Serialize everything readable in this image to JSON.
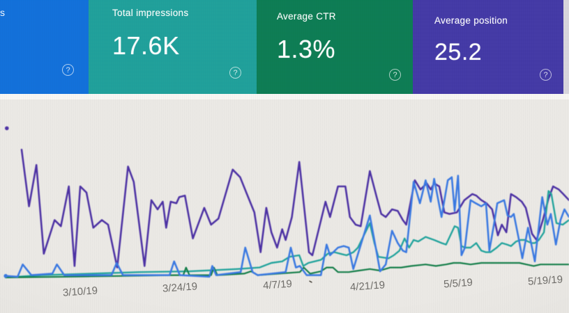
{
  "cards": {
    "clicks": {
      "visible_label_fragment": "s",
      "help_glyph": "?",
      "color": "#1170da"
    },
    "impressions": {
      "label": "Total impressions",
      "value": "17.6K",
      "help_glyph": "?",
      "color": "#1fa09a"
    },
    "ctr": {
      "label": "Average CTR",
      "value": "1.3%",
      "help_glyph": "?",
      "color": "#0c7c53"
    },
    "position": {
      "label": "Average position",
      "value": "25.2",
      "help_glyph": "?",
      "color": "#4339a6"
    }
  },
  "chart_data": {
    "type": "line",
    "title": "",
    "xlabel": "",
    "ylabel": "",
    "grid": false,
    "legend": "none",
    "x_tick_labels": [
      "3/10/19",
      "3/24/19",
      "4/7/19",
      "4/21/19",
      "5/5/19",
      "5/19/19"
    ],
    "x_tick_positions_pct": [
      14.1,
      31.6,
      48.8,
      64.6,
      80.5,
      95.8
    ],
    "y_axis_note": "no y-axis scale visible in image; point values are relative height, 0-100",
    "ylim": [
      0,
      100
    ],
    "series": [
      {
        "name": "purple-series",
        "color": "#4c31a4",
        "stroke_width": 2.6,
        "points": [
          [
            3.8,
            84
          ],
          [
            5.1,
            47
          ],
          [
            6.4,
            74
          ],
          [
            7.7,
            16
          ],
          [
            9.6,
            38
          ],
          [
            10.7,
            34
          ],
          [
            12.1,
            60
          ],
          [
            13.1,
            8
          ],
          [
            14.1,
            60
          ],
          [
            15.2,
            56
          ],
          [
            16.4,
            33
          ],
          [
            17.9,
            38
          ],
          [
            19,
            35
          ],
          [
            20.6,
            7
          ],
          [
            22.5,
            73
          ],
          [
            23.5,
            63
          ],
          [
            25.4,
            8
          ],
          [
            26.6,
            51
          ],
          [
            27.7,
            45
          ],
          [
            28.6,
            50
          ],
          [
            29.2,
            33
          ],
          [
            30,
            50
          ],
          [
            31,
            49
          ],
          [
            31.5,
            53
          ],
          [
            32.5,
            54
          ],
          [
            33.9,
            26
          ],
          [
            35.9,
            46
          ],
          [
            37.1,
            35
          ],
          [
            38.4,
            39
          ],
          [
            40.9,
            71
          ],
          [
            42.2,
            66
          ],
          [
            43.4,
            55
          ],
          [
            44.7,
            43
          ],
          [
            45.8,
            17
          ],
          [
            46.8,
            46
          ],
          [
            47.7,
            30
          ],
          [
            48.7,
            20
          ],
          [
            49.6,
            32
          ],
          [
            50.2,
            25
          ],
          [
            51.3,
            40
          ],
          [
            52.6,
            76
          ],
          [
            54.3,
            17
          ],
          [
            54.9,
            15
          ],
          [
            57.2,
            50
          ],
          [
            58,
            40
          ],
          [
            59.4,
            60
          ],
          [
            60.7,
            60
          ],
          [
            61.5,
            40
          ],
          [
            62.5,
            35
          ],
          [
            63.4,
            34
          ],
          [
            65,
            70
          ],
          [
            66.2,
            53
          ],
          [
            67,
            42
          ],
          [
            67.8,
            40
          ],
          [
            68.9,
            45
          ],
          [
            69.9,
            44
          ],
          [
            70.8,
            38
          ],
          [
            71.4,
            35
          ],
          [
            72.9,
            64
          ],
          [
            73.9,
            58
          ],
          [
            75,
            62
          ],
          [
            75.7,
            58
          ],
          [
            76.3,
            62
          ],
          [
            77.2,
            60
          ],
          [
            78.1,
            43
          ],
          [
            79,
            42
          ],
          [
            80.3,
            43
          ],
          [
            81.6,
            51
          ],
          [
            83,
            55
          ],
          [
            83.7,
            54
          ],
          [
            84.6,
            51
          ],
          [
            85.5,
            49
          ],
          [
            86.5,
            45
          ],
          [
            87.5,
            28
          ],
          [
            88.2,
            35
          ],
          [
            89,
            30
          ],
          [
            89.8,
            55
          ],
          [
            90.7,
            53
          ],
          [
            91.7,
            50
          ],
          [
            92.4,
            46
          ],
          [
            93.5,
            29
          ],
          [
            94.3,
            25
          ],
          [
            95.4,
            38
          ],
          [
            96.4,
            52
          ],
          [
            97.2,
            60
          ],
          [
            98.2,
            58
          ],
          [
            99,
            55
          ],
          [
            100,
            51
          ]
        ]
      },
      {
        "name": "teal-series",
        "color": "#20a39c",
        "stroke_width": 2.4,
        "points": [
          [
            1,
            0.5
          ],
          [
            7.4,
            2
          ],
          [
            15.9,
            3
          ],
          [
            24.5,
            4
          ],
          [
            33.3,
            4.5
          ],
          [
            41.7,
            6
          ],
          [
            45.6,
            7
          ],
          [
            47.7,
            10
          ],
          [
            49.6,
            11
          ],
          [
            50.9,
            14
          ],
          [
            52.6,
            15
          ],
          [
            53.3,
            8
          ],
          [
            54.2,
            10
          ],
          [
            56.4,
            12
          ],
          [
            57.6,
            16
          ],
          [
            58.8,
            17
          ],
          [
            59.8,
            16
          ],
          [
            60.9,
            15
          ],
          [
            62.1,
            17
          ],
          [
            62.9,
            20
          ],
          [
            65,
            36
          ],
          [
            65.8,
            23
          ],
          [
            66.5,
            14
          ],
          [
            68.3,
            13
          ],
          [
            69.2,
            15
          ],
          [
            70.2,
            18
          ],
          [
            71.1,
            26
          ],
          [
            71.9,
            20
          ],
          [
            72.7,
            25
          ],
          [
            73.5,
            24
          ],
          [
            74.8,
            27
          ],
          [
            76.3,
            25
          ],
          [
            77.6,
            23
          ],
          [
            78.4,
            22
          ],
          [
            79.9,
            34
          ],
          [
            80.5,
            33
          ],
          [
            81.1,
            21
          ],
          [
            81.7,
            20
          ],
          [
            82.7,
            20
          ],
          [
            83.7,
            23
          ],
          [
            84.6,
            18
          ],
          [
            85.4,
            17
          ],
          [
            86.2,
            17
          ],
          [
            87.3,
            20
          ],
          [
            88.2,
            23
          ],
          [
            89.1,
            22
          ],
          [
            89.8,
            21
          ],
          [
            90.7,
            24
          ],
          [
            91.5,
            25
          ],
          [
            92.2,
            25
          ],
          [
            92.8,
            24
          ],
          [
            93.4,
            23
          ],
          [
            94,
            23
          ],
          [
            94.7,
            25
          ],
          [
            95.6,
            30
          ],
          [
            96.4,
            57
          ],
          [
            96.9,
            55
          ],
          [
            97.8,
            36
          ],
          [
            98.9,
            35
          ],
          [
            100,
            38
          ]
        ]
      },
      {
        "name": "green-series",
        "color": "#107c46",
        "stroke_width": 2.2,
        "points": [
          [
            1,
            0.5
          ],
          [
            12.3,
            1
          ],
          [
            22.1,
            1.5
          ],
          [
            30.6,
            2
          ],
          [
            32.2,
            2
          ],
          [
            32.7,
            7
          ],
          [
            33.3,
            2
          ],
          [
            37.1,
            2
          ],
          [
            37.6,
            7
          ],
          [
            38.2,
            2
          ],
          [
            42.9,
            3
          ],
          [
            44.1,
            4.5
          ],
          [
            45.3,
            2
          ],
          [
            52.7,
            4
          ],
          [
            53.4,
            7
          ],
          [
            54.5,
            3
          ],
          [
            56.4,
            4.5
          ],
          [
            57.4,
            7
          ],
          [
            58.5,
            7
          ],
          [
            59.4,
            4
          ],
          [
            61.3,
            4
          ],
          [
            63.1,
            5
          ],
          [
            65,
            6
          ],
          [
            66.8,
            5
          ],
          [
            68.6,
            7
          ],
          [
            70.5,
            7
          ],
          [
            72.3,
            8
          ],
          [
            74.8,
            9
          ],
          [
            76.6,
            8
          ],
          [
            78.4,
            9
          ],
          [
            79.7,
            10
          ],
          [
            80.9,
            10
          ],
          [
            82.7,
            9
          ],
          [
            84.6,
            10
          ],
          [
            85.8,
            10
          ],
          [
            87.6,
            10
          ],
          [
            89.5,
            10
          ],
          [
            91.3,
            10
          ],
          [
            92.5,
            9
          ],
          [
            93.8,
            8
          ],
          [
            95,
            9
          ],
          [
            96.2,
            9
          ],
          [
            97.4,
            9
          ],
          [
            98.7,
            9
          ],
          [
            100,
            9
          ]
        ]
      },
      {
        "name": "blue-series",
        "color": "#3a79e2",
        "stroke_width": 2.6,
        "points": [
          [
            1,
            1.5
          ],
          [
            3.1,
            1
          ],
          [
            4,
            9
          ],
          [
            5.5,
            2
          ],
          [
            9.2,
            3
          ],
          [
            10,
            9
          ],
          [
            11.3,
            2
          ],
          [
            19.6,
            2
          ],
          [
            20.5,
            10
          ],
          [
            21.6,
            2
          ],
          [
            29.8,
            2
          ],
          [
            30.6,
            11
          ],
          [
            31.6,
            2
          ],
          [
            36.8,
            1
          ],
          [
            37.3,
            8
          ],
          [
            38,
            2
          ],
          [
            42.3,
            4
          ],
          [
            43.1,
            20
          ],
          [
            44.4,
            4
          ],
          [
            45.3,
            2
          ],
          [
            50.2,
            4
          ],
          [
            51.1,
            20
          ],
          [
            52,
            7
          ],
          [
            52.7,
            8
          ],
          [
            53.9,
            2
          ],
          [
            56.4,
            2
          ],
          [
            57.4,
            22
          ],
          [
            58,
            15
          ],
          [
            59.4,
            20
          ],
          [
            60.4,
            21
          ],
          [
            61.3,
            20
          ],
          [
            62.1,
            6
          ],
          [
            65,
            41
          ],
          [
            66.8,
            4.5
          ],
          [
            67.8,
            9
          ],
          [
            68.9,
            31
          ],
          [
            69.9,
            23
          ],
          [
            70.8,
            18
          ],
          [
            71.4,
            17
          ],
          [
            72.7,
            63
          ],
          [
            73.8,
            49
          ],
          [
            74.8,
            64
          ],
          [
            75.7,
            50
          ],
          [
            76.3,
            65
          ],
          [
            77.6,
            40
          ],
          [
            78.7,
            64
          ],
          [
            79.4,
            66
          ],
          [
            79.9,
            44
          ],
          [
            80.5,
            67
          ],
          [
            81.1,
            15
          ],
          [
            81.7,
            20
          ],
          [
            82.7,
            51
          ],
          [
            83.6,
            49
          ],
          [
            84.6,
            47
          ],
          [
            85.4,
            49
          ],
          [
            86,
            18
          ],
          [
            86.8,
            35
          ],
          [
            87.4,
            49
          ],
          [
            88.6,
            51
          ],
          [
            89.2,
            41
          ],
          [
            89.8,
            40
          ],
          [
            90.3,
            42
          ],
          [
            91.1,
            27
          ],
          [
            91.8,
            13
          ],
          [
            92.8,
            33
          ],
          [
            94,
            11
          ],
          [
            95.3,
            53
          ],
          [
            96.2,
            35
          ],
          [
            96.8,
            42
          ],
          [
            97.7,
            22
          ],
          [
            98.5,
            38
          ],
          [
            99.2,
            45
          ],
          [
            100,
            40
          ]
        ]
      }
    ],
    "point_markers": [
      {
        "series": "purple-series",
        "x": 1.2,
        "v": 98
      },
      {
        "series": "blue-series",
        "x": 1.0,
        "v": 1.5
      }
    ]
  },
  "colors": {
    "page_bg": "#eae8e4",
    "chart_bg": "#ebe9e5",
    "axis_label": "#6f6d69",
    "bright_strip": "#f7f6f3",
    "screen_edge": "#d7d5dc"
  }
}
